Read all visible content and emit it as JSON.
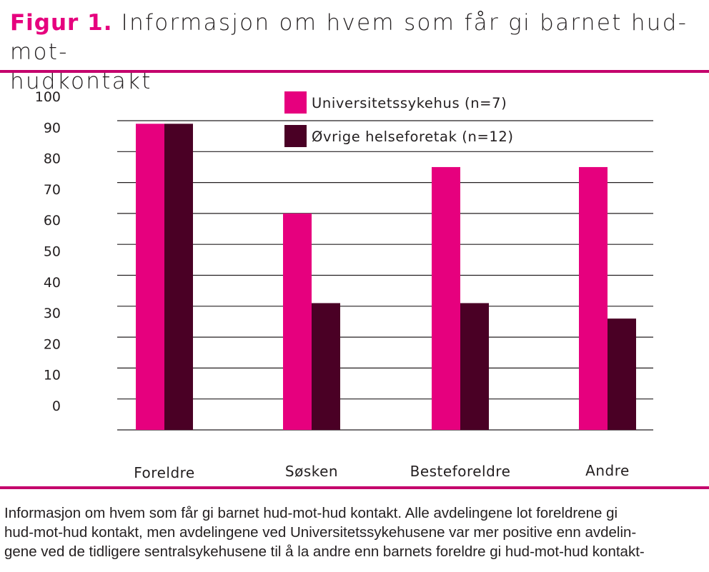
{
  "figure": {
    "label": "Figur 1.",
    "title_line1": "Informasjon om hvem som får gi barnet hud-mot-",
    "title_line2": "hudkontakt"
  },
  "chart_data": {
    "type": "bar",
    "categories": [
      "Foreldre",
      "Søsken",
      "Besteforeldre",
      "Andre"
    ],
    "series": [
      {
        "name": "Universitetssykehus (n=7)",
        "color": "#e6007e",
        "values": [
          99,
          70,
          85,
          85
        ]
      },
      {
        "name": "Øvrige helseforetak (n=12)",
        "color": "#4a0025",
        "values": [
          99,
          41,
          41,
          36
        ]
      }
    ],
    "yticks": [
      0,
      10,
      20,
      30,
      40,
      50,
      60,
      70,
      80,
      90,
      100
    ],
    "ylim": [
      0,
      100
    ],
    "grid": true,
    "legend_position": "top-center",
    "xlabel": "",
    "ylabel": ""
  },
  "caption": {
    "line1": "Informasjon om hvem som får gi barnet hud-mot-hud kontakt. Alle avdelingene lot foreldrene gi",
    "line2": "hud-mot-hud kontakt, men avdelingene ved Universitetssykehusene var mer positive enn avdelin-",
    "line3": "gene ved de tidligere sentralsykehusene til å la andre enn barnets foreldre gi hud-mot-hud kontakt-"
  }
}
